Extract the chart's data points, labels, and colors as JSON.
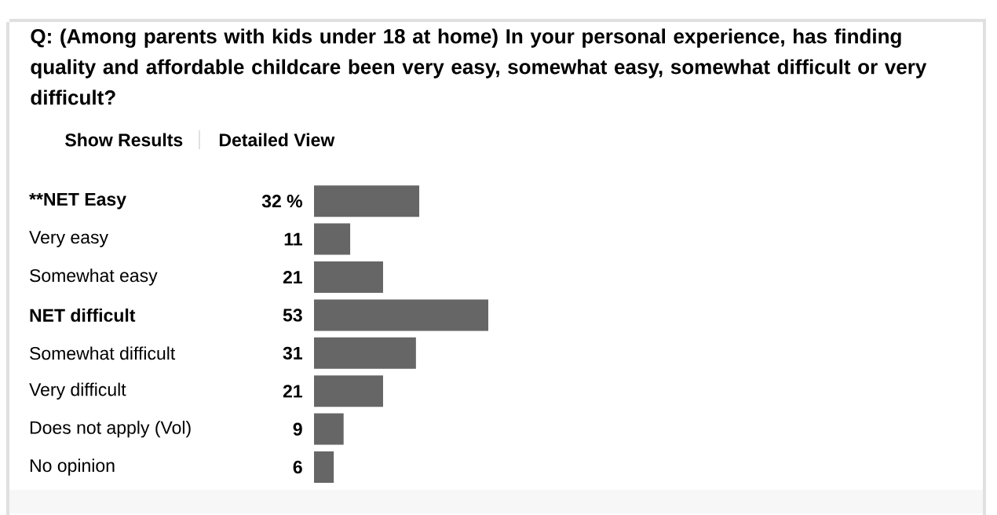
{
  "chart_data": {
    "type": "bar",
    "orientation": "horizontal",
    "title": "Q: (Among parents with kids under 18 at home) In your personal experience, has finding quality and affordable childcare been very easy, somewhat easy, somewhat difficult or very difficult?",
    "annotations": [
      "Show Results",
      "Detailed View"
    ],
    "categories": [
      "****NET Easy**",
      "Very easy",
      "Somewhat easy",
      "**NET difficult**",
      "Somewhat difficult",
      "Very difficult",
      "Does not apply (Vol)",
      "No opinion"
    ],
    "values": [
      32,
      11,
      21,
      53,
      31,
      21,
      9,
      6
    ],
    "value_labels": [
      "32 %",
      "11",
      "21",
      "53",
      "31",
      "21",
      "9",
      "6"
    ],
    "color": "#666666"
  }
}
